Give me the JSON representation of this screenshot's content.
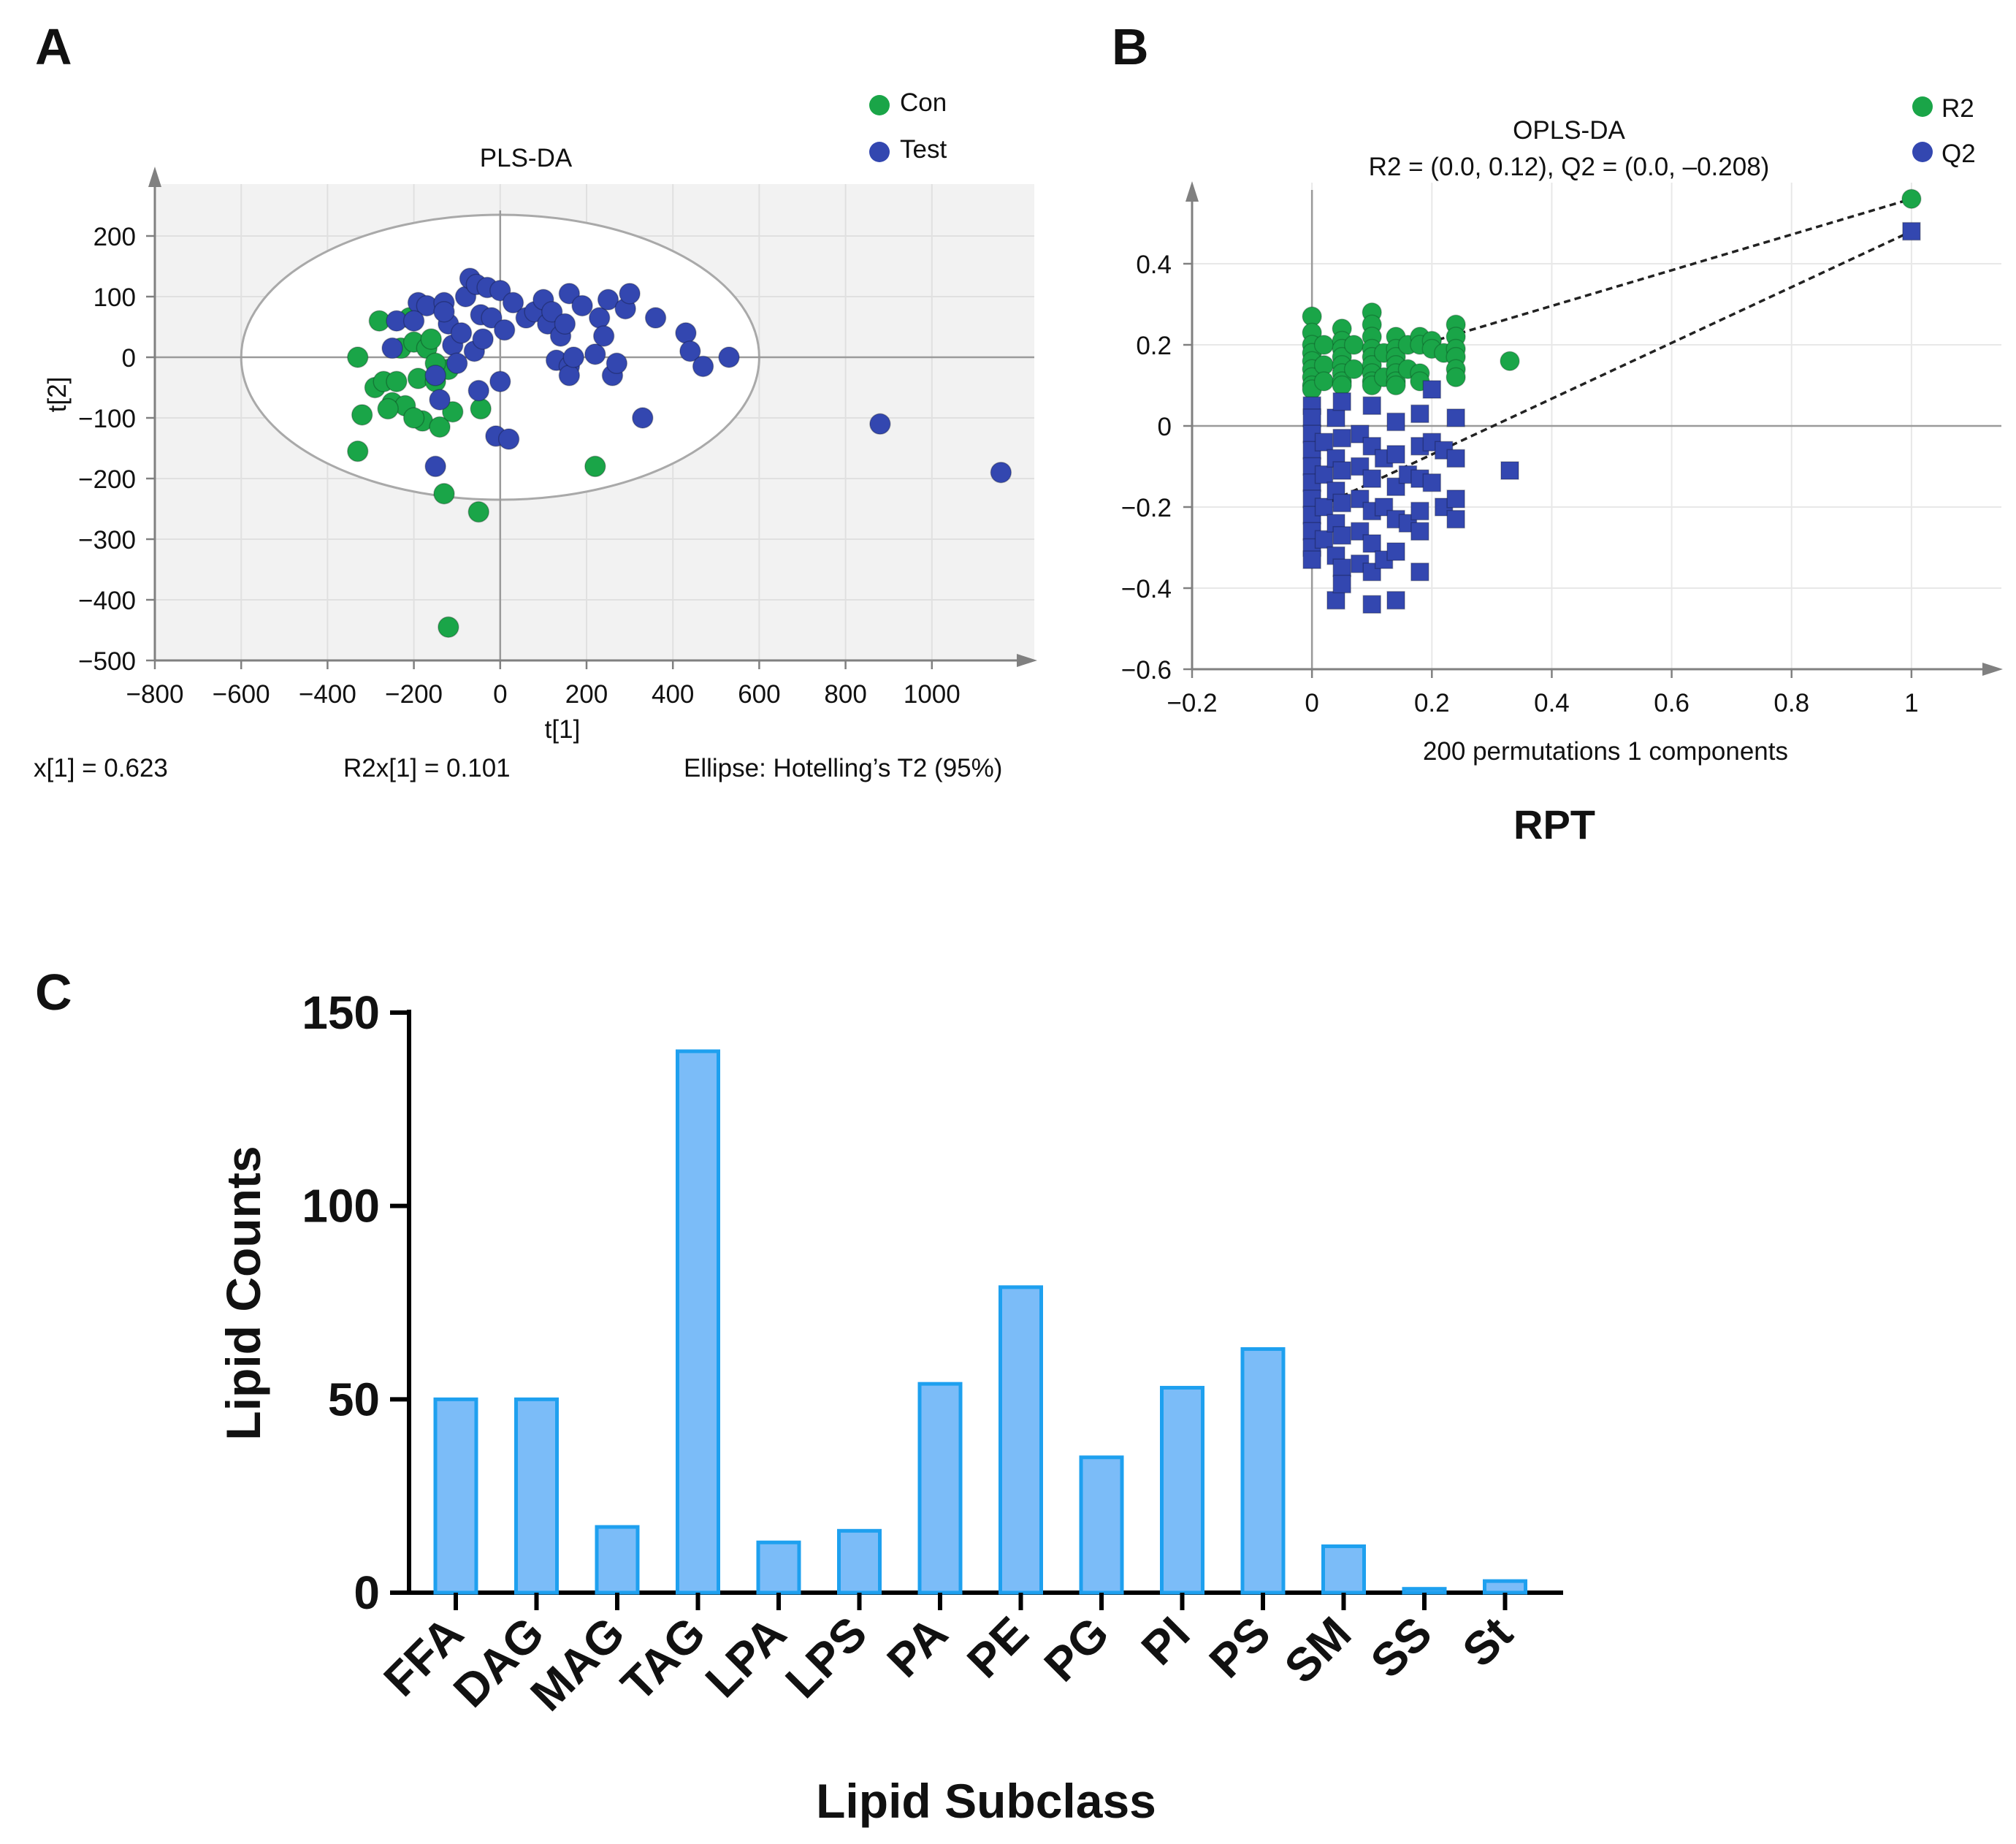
{
  "panels": {
    "A": {
      "letter": "A",
      "title": "PLS-DA",
      "xlabel": "t[1]",
      "ylabel": "t[2]",
      "footer_left": "x[1] = 0.623",
      "footer_mid": "R2x[1] = 0.101",
      "footer_right": "Ellipse: Hotelling’s T2 (95%)",
      "legend": [
        {
          "name": "Con",
          "color": "#1aa548"
        },
        {
          "name": "Test",
          "color": "#3347b0"
        }
      ]
    },
    "B": {
      "letter": "B",
      "title": "OPLS-DA",
      "subtitle": "R2 = (0.0, 0.12), Q2 = (0.0, –0.208)",
      "xlabel": "200 permutations 1 components",
      "bottom_title": "RPT",
      "legend": [
        {
          "name": "R2",
          "color": "#1aa548"
        },
        {
          "name": "Q2",
          "color": "#3347b0"
        }
      ]
    },
    "C": {
      "letter": "C",
      "xlabel": "Lipid Subclass",
      "ylabel": "Lipid Counts"
    }
  },
  "chart_data": [
    {
      "id": "A",
      "type": "scatter",
      "title": "PLS-DA",
      "xlabel": "t[1]",
      "ylabel": "t[2]",
      "xlim": [
        -800,
        1200
      ],
      "ylim": [
        -500,
        300
      ],
      "xticks": [
        -800,
        -600,
        -400,
        -200,
        0,
        200,
        400,
        600,
        800,
        1000
      ],
      "xtick_labels": [
        "−800",
        "−600",
        "−400",
        "−200",
        "0",
        "200",
        "400",
        "600",
        "800",
        "1000"
      ],
      "yticks": [
        200,
        100,
        0,
        -100,
        -200,
        -300,
        -400,
        -500
      ],
      "ytick_labels": [
        "200",
        "100",
        "0",
        "−100",
        "−200",
        "−300",
        "−400",
        "−500"
      ],
      "ellipse": {
        "center": [
          0,
          0
        ],
        "rx": 600,
        "ry": 235,
        "label": "Hotelling’s T2 (95%)"
      },
      "series": [
        {
          "name": "Con",
          "color": "#1aa548",
          "points": [
            [
              -330,
              0
            ],
            [
              -320,
              -95
            ],
            [
              -330,
              -155
            ],
            [
              -290,
              -50
            ],
            [
              -280,
              60
            ],
            [
              -270,
              -40
            ],
            [
              -250,
              -75
            ],
            [
              -240,
              -40
            ],
            [
              -230,
              15
            ],
            [
              -220,
              -80
            ],
            [
              -210,
              65
            ],
            [
              -200,
              25
            ],
            [
              -190,
              -35
            ],
            [
              -180,
              -105
            ],
            [
              -170,
              15
            ],
            [
              -160,
              30
            ],
            [
              -150,
              -40
            ],
            [
              -140,
              -115
            ],
            [
              -130,
              -225
            ],
            [
              -120,
              -20
            ],
            [
              -110,
              -90
            ],
            [
              -50,
              -255
            ],
            [
              -45,
              -85
            ],
            [
              -120,
              -445
            ],
            [
              220,
              -180
            ],
            [
              -200,
              -100
            ],
            [
              -260,
              -85
            ],
            [
              -150,
              -10
            ]
          ]
        },
        {
          "name": "Test",
          "color": "#3347b0",
          "points": [
            [
              -250,
              15
            ],
            [
              -240,
              60
            ],
            [
              -190,
              90
            ],
            [
              -170,
              85
            ],
            [
              -150,
              -30
            ],
            [
              -140,
              -70
            ],
            [
              -130,
              90
            ],
            [
              -120,
              55
            ],
            [
              -110,
              20
            ],
            [
              -100,
              -10
            ],
            [
              -90,
              40
            ],
            [
              -80,
              100
            ],
            [
              -70,
              130
            ],
            [
              -60,
              10
            ],
            [
              -55,
              120
            ],
            [
              -50,
              -55
            ],
            [
              -45,
              70
            ],
            [
              -40,
              30
            ],
            [
              -30,
              115
            ],
            [
              -20,
              65
            ],
            [
              -10,
              -130
            ],
            [
              0,
              110
            ],
            [
              10,
              45
            ],
            [
              0,
              -40
            ],
            [
              20,
              -135
            ],
            [
              30,
              90
            ],
            [
              60,
              65
            ],
            [
              80,
              75
            ],
            [
              100,
              95
            ],
            [
              110,
              55
            ],
            [
              120,
              75
            ],
            [
              130,
              -5
            ],
            [
              140,
              35
            ],
            [
              150,
              55
            ],
            [
              160,
              -15
            ],
            [
              160,
              -30
            ],
            [
              160,
              105
            ],
            [
              170,
              0
            ],
            [
              190,
              85
            ],
            [
              220,
              5
            ],
            [
              230,
              65
            ],
            [
              240,
              35
            ],
            [
              250,
              95
            ],
            [
              260,
              -30
            ],
            [
              270,
              -10
            ],
            [
              290,
              80
            ],
            [
              300,
              105
            ],
            [
              330,
              -100
            ],
            [
              360,
              65
            ],
            [
              430,
              40
            ],
            [
              440,
              10
            ],
            [
              470,
              -15
            ],
            [
              530,
              0
            ],
            [
              -150,
              -180
            ],
            [
              880,
              -110
            ],
            [
              1160,
              -190
            ],
            [
              -200,
              60
            ],
            [
              -130,
              75
            ]
          ]
        }
      ]
    },
    {
      "id": "B",
      "type": "scatter",
      "title": "OPLS-DA",
      "subtitle": "R2 = (0.0, 0.12), Q2 = (0.0, –0.208)",
      "xlabel": "200 permutations 1 components",
      "xlim": [
        -0.2,
        1.15
      ],
      "ylim": [
        -0.6,
        0.6
      ],
      "xticks": [
        -0.2,
        0,
        0.2,
        0.4,
        0.6,
        0.8,
        1
      ],
      "xtick_labels": [
        "−0.2",
        "0",
        "0.2",
        "0.4",
        "0.6",
        "0.8",
        "1"
      ],
      "yticks": [
        0.4,
        0.2,
        0,
        -0.2,
        -0.4,
        -0.6
      ],
      "ytick_labels": [
        "0.4",
        "0.2",
        "0",
        "−0.2",
        "−0.4",
        "−0.6"
      ],
      "regression_lines": [
        {
          "name": "R2",
          "from": [
            0,
            0.12
          ],
          "to": [
            1,
            0.56
          ]
        },
        {
          "name": "Q2",
          "from": [
            0,
            -0.208
          ],
          "to": [
            1,
            0.48
          ]
        }
      ],
      "series": [
        {
          "name": "R2",
          "color": "#1aa548",
          "marker": "circle",
          "points": [
            [
              0,
              0.27
            ],
            [
              0,
              0.23
            ],
            [
              0,
              0.2
            ],
            [
              0,
              0.18
            ],
            [
              0,
              0.16
            ],
            [
              0,
              0.14
            ],
            [
              0,
              0.12
            ],
            [
              0,
              0.1
            ],
            [
              0,
              0.09
            ],
            [
              0.02,
              0.2
            ],
            [
              0.02,
              0.15
            ],
            [
              0.02,
              0.11
            ],
            [
              0.05,
              0.24
            ],
            [
              0.05,
              0.21
            ],
            [
              0.05,
              0.19
            ],
            [
              0.05,
              0.17
            ],
            [
              0.05,
              0.15
            ],
            [
              0.05,
              0.13
            ],
            [
              0.05,
              0.11
            ],
            [
              0.05,
              0.1
            ],
            [
              0.07,
              0.2
            ],
            [
              0.07,
              0.14
            ],
            [
              0.1,
              0.28
            ],
            [
              0.1,
              0.25
            ],
            [
              0.1,
              0.22
            ],
            [
              0.1,
              0.19
            ],
            [
              0.1,
              0.17
            ],
            [
              0.1,
              0.15
            ],
            [
              0.1,
              0.13
            ],
            [
              0.1,
              0.11
            ],
            [
              0.1,
              0.1
            ],
            [
              0.12,
              0.18
            ],
            [
              0.12,
              0.12
            ],
            [
              0.14,
              0.22
            ],
            [
              0.14,
              0.19
            ],
            [
              0.14,
              0.17
            ],
            [
              0.14,
              0.15
            ],
            [
              0.14,
              0.13
            ],
            [
              0.14,
              0.11
            ],
            [
              0.14,
              0.1
            ],
            [
              0.16,
              0.2
            ],
            [
              0.16,
              0.14
            ],
            [
              0.18,
              0.22
            ],
            [
              0.18,
              0.2
            ],
            [
              0.18,
              0.13
            ],
            [
              0.18,
              0.11
            ],
            [
              0.2,
              0.21
            ],
            [
              0.2,
              0.19
            ],
            [
              0.22,
              0.18
            ],
            [
              0.24,
              0.25
            ],
            [
              0.24,
              0.22
            ],
            [
              0.24,
              0.19
            ],
            [
              0.24,
              0.17
            ],
            [
              0.24,
              0.14
            ],
            [
              0.24,
              0.12
            ],
            [
              0.33,
              0.16
            ],
            [
              1,
              0.56
            ]
          ]
        },
        {
          "name": "Q2",
          "color": "#3347b0",
          "marker": "square",
          "points": [
            [
              0,
              0.05
            ],
            [
              0,
              0.02
            ],
            [
              0,
              -0.02
            ],
            [
              0,
              -0.06
            ],
            [
              0,
              -0.1
            ],
            [
              0,
              -0.14
            ],
            [
              0,
              -0.18
            ],
            [
              0,
              -0.22
            ],
            [
              0,
              -0.26
            ],
            [
              0,
              -0.3
            ],
            [
              0,
              -0.33
            ],
            [
              0.02,
              -0.04
            ],
            [
              0.02,
              -0.12
            ],
            [
              0.02,
              -0.2
            ],
            [
              0.02,
              -0.28
            ],
            [
              0.04,
              0.02
            ],
            [
              0.04,
              -0.08
            ],
            [
              0.04,
              -0.16
            ],
            [
              0.04,
              -0.24
            ],
            [
              0.04,
              -0.32
            ],
            [
              0.04,
              -0.43
            ],
            [
              0.05,
              0.06
            ],
            [
              0.05,
              -0.03
            ],
            [
              0.05,
              -0.11
            ],
            [
              0.05,
              -0.19
            ],
            [
              0.05,
              -0.27
            ],
            [
              0.05,
              -0.35
            ],
            [
              0.05,
              -0.39
            ],
            [
              0.08,
              -0.02
            ],
            [
              0.08,
              -0.1
            ],
            [
              0.08,
              -0.18
            ],
            [
              0.08,
              -0.26
            ],
            [
              0.08,
              -0.34
            ],
            [
              0.1,
              0.05
            ],
            [
              0.1,
              -0.05
            ],
            [
              0.1,
              -0.13
            ],
            [
              0.1,
              -0.21
            ],
            [
              0.1,
              -0.29
            ],
            [
              0.1,
              -0.36
            ],
            [
              0.1,
              -0.44
            ],
            [
              0.12,
              -0.08
            ],
            [
              0.12,
              -0.2
            ],
            [
              0.12,
              -0.33
            ],
            [
              0.14,
              0.01
            ],
            [
              0.14,
              -0.07
            ],
            [
              0.14,
              -0.15
            ],
            [
              0.14,
              -0.23
            ],
            [
              0.14,
              -0.31
            ],
            [
              0.14,
              -0.43
            ],
            [
              0.16,
              -0.12
            ],
            [
              0.16,
              -0.24
            ],
            [
              0.18,
              0.03
            ],
            [
              0.18,
              -0.05
            ],
            [
              0.18,
              -0.13
            ],
            [
              0.18,
              -0.21
            ],
            [
              0.18,
              -0.26
            ],
            [
              0.18,
              -0.36
            ],
            [
              0.2,
              0.09
            ],
            [
              0.2,
              -0.04
            ],
            [
              0.2,
              -0.14
            ],
            [
              0.22,
              -0.06
            ],
            [
              0.22,
              -0.2
            ],
            [
              0.24,
              0.02
            ],
            [
              0.24,
              -0.08
            ],
            [
              0.24,
              -0.18
            ],
            [
              0.24,
              -0.23
            ],
            [
              0.33,
              -0.11
            ],
            [
              1,
              0.48
            ]
          ]
        }
      ]
    },
    {
      "id": "C",
      "type": "bar",
      "xlabel": "Lipid Subclass",
      "ylabel": "Lipid Counts",
      "ylim": [
        0,
        150
      ],
      "yticks": [
        0,
        50,
        100,
        150
      ],
      "ytick_labels": [
        "0",
        "50",
        "100",
        "150"
      ],
      "categories": [
        "FFA",
        "DAG",
        "MAG",
        "TAG",
        "LPA",
        "LPS",
        "PA",
        "PE",
        "PG",
        "PI",
        "PS",
        "SM",
        "SS",
        "St"
      ],
      "values": [
        50,
        50,
        17,
        140,
        13,
        16,
        54,
        79,
        35,
        53,
        63,
        12,
        1,
        3
      ],
      "bar_color": "#7bbcf8",
      "bar_edge": "#1ea0ef"
    }
  ]
}
